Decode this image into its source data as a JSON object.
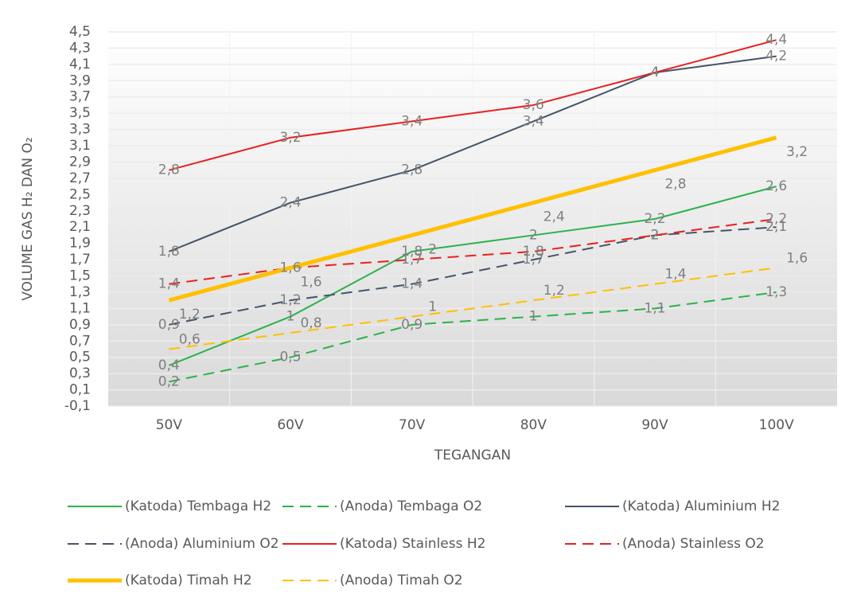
{
  "chart_data": {
    "type": "line",
    "y_label": "VOLUME GAS H₂ DAN O₂",
    "x_label": "TEGANGAN",
    "categories": [
      "50V",
      "60V",
      "70V",
      "80V",
      "90V",
      "100V"
    ],
    "ylim": [
      -0.1,
      4.5
    ],
    "yticks": [
      {
        "value": -0.1,
        "label": "-0,1"
      },
      {
        "value": 0.1,
        "label": "0,1"
      },
      {
        "value": 0.3,
        "label": "0,3"
      },
      {
        "value": 0.5,
        "label": "0,5"
      },
      {
        "value": 0.7,
        "label": "0,7"
      },
      {
        "value": 0.9,
        "label": "0,9"
      },
      {
        "value": 1.1,
        "label": "1,1"
      },
      {
        "value": 1.3,
        "label": "1,3"
      },
      {
        "value": 1.5,
        "label": "1,5"
      },
      {
        "value": 1.7,
        "label": "1,7"
      },
      {
        "value": 1.9,
        "label": "1,9"
      },
      {
        "value": 2.1,
        "label": "2,1"
      },
      {
        "value": 2.3,
        "label": "2,3"
      },
      {
        "value": 2.5,
        "label": "2,5"
      },
      {
        "value": 2.7,
        "label": "2,7"
      },
      {
        "value": 2.9,
        "label": "2,9"
      },
      {
        "value": 3.1,
        "label": "3,1"
      },
      {
        "value": 3.3,
        "label": "3,3"
      },
      {
        "value": 3.5,
        "label": "3,5"
      },
      {
        "value": 3.7,
        "label": "3,7"
      },
      {
        "value": 3.9,
        "label": "3,9"
      },
      {
        "value": 4.1,
        "label": "4,1"
      },
      {
        "value": 4.3,
        "label": "4,3"
      },
      {
        "value": 4.5,
        "label": "4,5"
      }
    ],
    "grid": true,
    "legend": "bottom",
    "series": [
      {
        "name": "(Katoda) Tembaga H2",
        "color": "#2bb24c",
        "dash": false,
        "width": 2,
        "values": [
          0.4,
          1,
          1.8,
          2,
          2.2,
          2.6
        ],
        "value_labels": [
          "0,4",
          "1",
          "1,8",
          "2",
          "2,2",
          "2,6"
        ]
      },
      {
        "name": "(Anoda) Tembaga O2",
        "color": "#2bb24c",
        "dash": true,
        "width": 2,
        "values": [
          0.2,
          0.5,
          0.9,
          1,
          1.1,
          1.3
        ],
        "value_labels": [
          "0,2",
          "0,5",
          "0,9",
          "1",
          "1,1",
          "1,3"
        ]
      },
      {
        "name": "(Katoda) Aluminium H2",
        "color": "#44546a",
        "dash": false,
        "width": 2,
        "values": [
          1.8,
          2.4,
          2.8,
          3.4,
          4,
          4.2
        ],
        "value_labels": [
          "1,8",
          "2,4",
          "2,8",
          "3,4",
          "4",
          "4,2"
        ]
      },
      {
        "name": "(Anoda) Aluminium O2",
        "color": "#44546a",
        "dash": true,
        "width": 2,
        "values": [
          0.9,
          1.2,
          1.4,
          1.7,
          2,
          2.1
        ],
        "value_labels": [
          "0,9",
          "1,2",
          "1,4",
          "1,7",
          "2",
          "2,1"
        ]
      },
      {
        "name": "(Katoda) Stainless H2",
        "color": "#e8201f",
        "dash": false,
        "width": 2,
        "values": [
          2.8,
          3.2,
          3.4,
          3.6,
          4,
          4.4
        ],
        "value_labels": [
          "2,8",
          "3,2",
          "3,4",
          "3,6",
          "4",
          "4,4"
        ]
      },
      {
        "name": "(Anoda) Stainless O2",
        "color": "#e8201f",
        "dash": true,
        "width": 2,
        "values": [
          1.4,
          1.6,
          1.7,
          1.8,
          2,
          2.2
        ],
        "value_labels": [
          "1,4",
          "1,6",
          "1,7",
          "1,8",
          "2",
          "2,2"
        ]
      },
      {
        "name": "(Katoda) Timah H2",
        "color": "#ffc000",
        "dash": false,
        "width": 5,
        "values": [
          1.2,
          1.6,
          2,
          2.4,
          2.8,
          3.2
        ],
        "value_labels": [
          "1,2",
          "1,6",
          "2",
          "2,4",
          "2,8",
          "3,2"
        ]
      },
      {
        "name": "(Anoda) Timah O2",
        "color": "#ffc000",
        "dash": true,
        "width": 2,
        "values": [
          0.6,
          0.8,
          1,
          1.2,
          1.4,
          1.6
        ],
        "value_labels": [
          "0,6",
          "0,8",
          "1",
          "1,2",
          "1,4",
          "1,6"
        ]
      }
    ]
  }
}
